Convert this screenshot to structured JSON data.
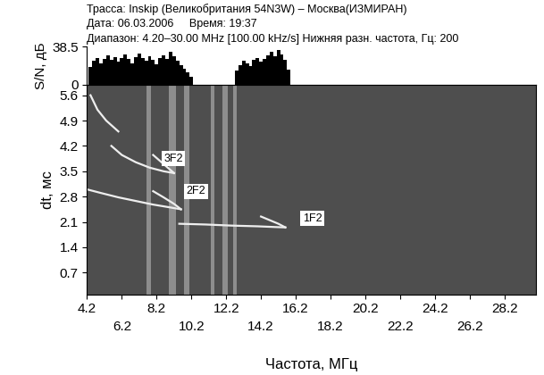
{
  "header": [
    "Трасса: Inskip (Великобритания 54N3W) – Москва(ИЗМИРАН)",
    "Дата: 06.03.2006     Время: 19:37",
    "Диапазон: 4.20–30.00 MHz [100.00 kHz/s] Нижняя разн. частота, Гц: 200"
  ],
  "chart_data": [
    {
      "type": "bar",
      "y_label": "S/N, дБ",
      "color": "#000000",
      "tick_labels": "y",
      "x": [
        4.4,
        4.6,
        4.8,
        5.0,
        5.2,
        5.4,
        5.6,
        5.8,
        6.0,
        6.2,
        6.4,
        6.6,
        6.8,
        7.0,
        7.2,
        7.4,
        7.6,
        7.8,
        8.0,
        8.2,
        8.4,
        8.6,
        8.8,
        9.0,
        9.2,
        9.4,
        9.6,
        9.8,
        10.0,
        10.2,
        12.8,
        13.0,
        13.2,
        13.4,
        13.6,
        13.8,
        14.0,
        14.2,
        14.4,
        14.6,
        14.8,
        15.0,
        15.2,
        15.4,
        15.6,
        15.8
      ],
      "values": [
        18,
        24,
        27,
        22,
        26,
        30,
        25,
        28,
        23,
        27,
        31,
        26,
        22,
        28,
        32,
        27,
        24,
        29,
        25,
        21,
        27,
        30,
        26,
        33,
        29,
        24,
        20,
        16,
        12,
        8,
        14,
        20,
        24,
        22,
        19,
        25,
        27,
        23,
        26,
        30,
        33,
        29,
        35,
        31,
        25,
        15
      ],
      "xlim": [
        4.2,
        30.0
      ],
      "ylim": [
        0,
        38.5
      ],
      "yticks": [
        0,
        38.5
      ]
    },
    {
      "type": "line",
      "x_label": "Частота, МГц",
      "y_label": "dt, мс",
      "xlim": [
        4.2,
        30.0
      ],
      "ylim": [
        0.1,
        5.9
      ],
      "xticks": [
        4.2,
        6.2,
        8.2,
        10.2,
        12.2,
        14.2,
        16.2,
        18.2,
        20.2,
        22.2,
        24.2,
        26.2,
        28.2
      ],
      "yticks": [
        0.7,
        1.4,
        2.1,
        2.8,
        3.5,
        4.2,
        4.9,
        5.6
      ],
      "interference_bands": [
        [
          7.6,
          7.9
        ],
        [
          8.9,
          9.3
        ],
        [
          9.8,
          10.1
        ],
        [
          11.3,
          11.5
        ],
        [
          12.0,
          12.3
        ],
        [
          12.6,
          12.8
        ]
      ],
      "series": [
        {
          "color": "#eeeeee",
          "x": [
            9.5,
            11.0,
            12.5,
            14.0,
            15.0,
            15.6
          ],
          "values": [
            2.05,
            2.03,
            2.0,
            1.98,
            1.96,
            1.95
          ]
        },
        {
          "color": "#eeeeee",
          "x": [
            15.6,
            15.2,
            14.7,
            14.2
          ],
          "values": [
            1.95,
            2.05,
            2.15,
            2.25
          ]
        },
        {
          "color": "#eeeeee",
          "x": [
            4.2,
            5.0,
            6.0,
            7.0,
            8.0,
            9.0,
            9.6
          ],
          "values": [
            3.0,
            2.9,
            2.78,
            2.68,
            2.58,
            2.5,
            2.45
          ]
        },
        {
          "color": "#eeeeee",
          "x": [
            9.6,
            9.2,
            8.6,
            8.0
          ],
          "values": [
            2.45,
            2.6,
            2.78,
            2.95
          ]
        },
        {
          "color": "#eeeeee",
          "x": [
            5.6,
            6.2,
            7.0,
            7.8,
            8.6,
            9.2
          ],
          "values": [
            4.2,
            3.95,
            3.75,
            3.6,
            3.5,
            3.45
          ]
        },
        {
          "color": "#eeeeee",
          "x": [
            9.2,
            8.6,
            8.0
          ],
          "values": [
            3.45,
            3.7,
            3.95
          ]
        },
        {
          "color": "#eeeeee",
          "x": [
            4.4,
            4.8,
            5.3,
            6.0
          ],
          "values": [
            5.6,
            5.2,
            4.9,
            4.6
          ]
        }
      ],
      "annotations": [
        {
          "text": "3F2",
          "x": 8.6,
          "y": 3.85
        },
        {
          "text": "2F2",
          "x": 9.9,
          "y": 2.95
        },
        {
          "text": "1F2",
          "x": 16.6,
          "y": 2.2
        }
      ]
    }
  ]
}
